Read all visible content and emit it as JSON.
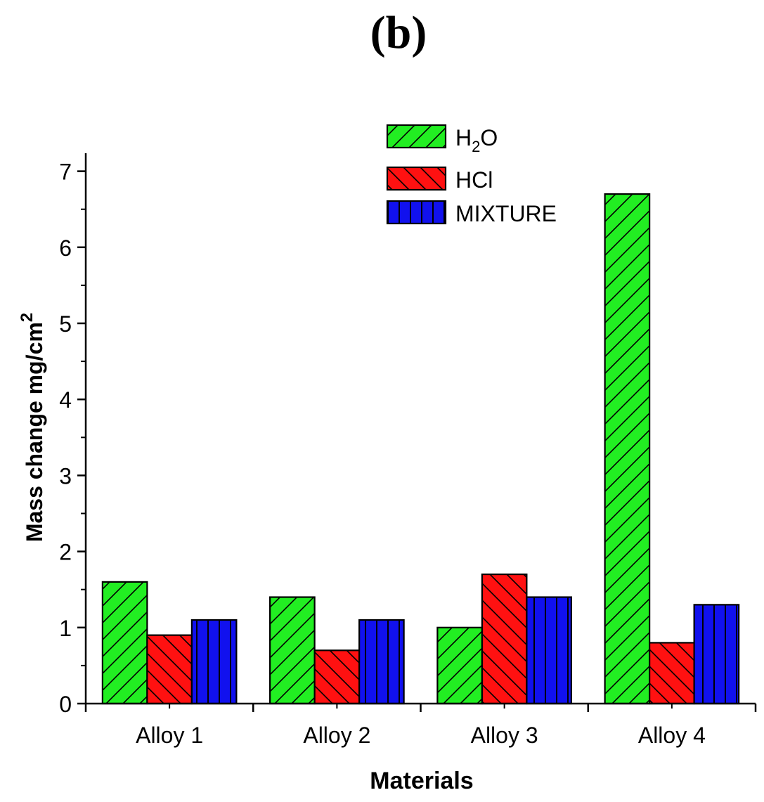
{
  "panel_label": "(b)",
  "colors": {
    "H2O": "#22ee22",
    "HCl": "#ff1111",
    "MIXTURE": "#1111ee",
    "axis": "#000000"
  },
  "chart_data": {
    "type": "bar",
    "title": "",
    "xlabel": "Materials",
    "ylabel": "Mass change mg/cm",
    "ylabel_superscript": "2",
    "ylim": [
      0,
      7.25
    ],
    "yticks": [
      "0",
      "1",
      "2",
      "3",
      "4",
      "5",
      "6",
      "7"
    ],
    "categories": [
      "Alloy 1",
      "Alloy 2",
      "Alloy 3",
      "Alloy 4"
    ],
    "series": [
      {
        "name": "H2O",
        "legend_main": "H",
        "legend_sub": "2",
        "legend_tail": "O",
        "pattern": "forward-diagonal",
        "values": [
          1.6,
          1.4,
          1.0,
          6.7
        ]
      },
      {
        "name": "HCl",
        "legend_main": "HCl",
        "pattern": "back-diagonal",
        "values": [
          0.9,
          0.7,
          1.7,
          0.8
        ]
      },
      {
        "name": "MIXTURE",
        "legend_main": "MIXTURE",
        "pattern": "vertical",
        "values": [
          1.1,
          1.1,
          1.4,
          1.3
        ]
      }
    ],
    "legend_position": "top-center",
    "grid": false
  }
}
